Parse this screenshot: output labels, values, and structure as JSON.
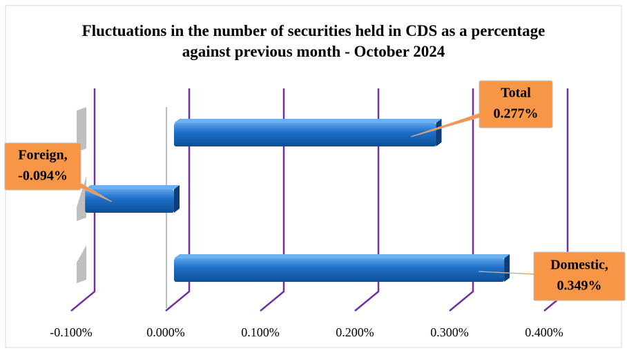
{
  "chart_data": {
    "type": "bar",
    "orientation": "horizontal",
    "title": "Fluctuations in the number of securities held in CDS as a percentage against previous month - October 2024",
    "categories": [
      "Total",
      "Foreign,",
      "Domestic,"
    ],
    "values": [
      0.277,
      -0.094,
      0.349
    ],
    "value_labels": [
      "0.277%",
      "-0.094%",
      "0.349%"
    ],
    "color": "#1f6fc5",
    "label_color": "#f79646",
    "grid_color": "#7030a0",
    "xlim": [
      -0.1,
      0.4
    ],
    "xticks": [
      {
        "value": -0.1,
        "label": "-0.100%"
      },
      {
        "value": 0,
        "label": "0.000%"
      },
      {
        "value": 0.1,
        "label": "0.100%"
      },
      {
        "value": 0.2,
        "label": "0.200%"
      },
      {
        "value": 0.3,
        "label": "0.300%"
      },
      {
        "value": 0.4,
        "label": "0.400%"
      }
    ],
    "grid": true
  }
}
